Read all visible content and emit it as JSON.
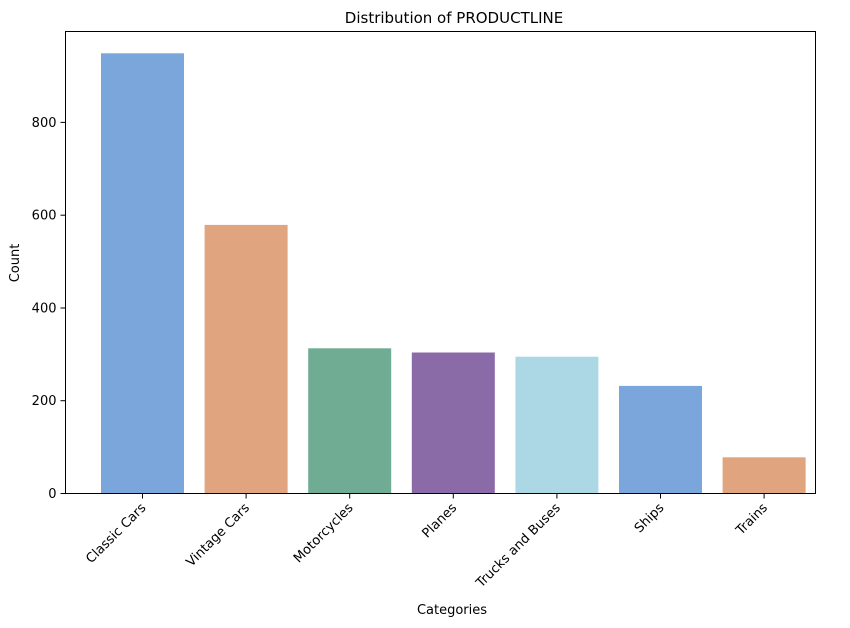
{
  "chart_data": {
    "type": "bar",
    "title": "Distribution of PRODUCTLINE",
    "xlabel": "Categories",
    "ylabel": "Count",
    "categories": [
      "Classic Cars",
      "Vintage Cars",
      "Motorcycles",
      "Planes",
      "Trucks and Buses",
      "Ships",
      "Trains"
    ],
    "values": [
      949,
      579,
      313,
      304,
      295,
      232,
      78
    ],
    "colors": [
      "#7aa6db",
      "#e0a47f",
      "#6fac93",
      "#8a6ba8",
      "#acd8e6",
      "#7aa6db",
      "#e0a47f"
    ],
    "ylim": [
      0,
      996
    ],
    "yticks": [
      0,
      200,
      400,
      600,
      800
    ],
    "grid": false,
    "legend": "none"
  }
}
